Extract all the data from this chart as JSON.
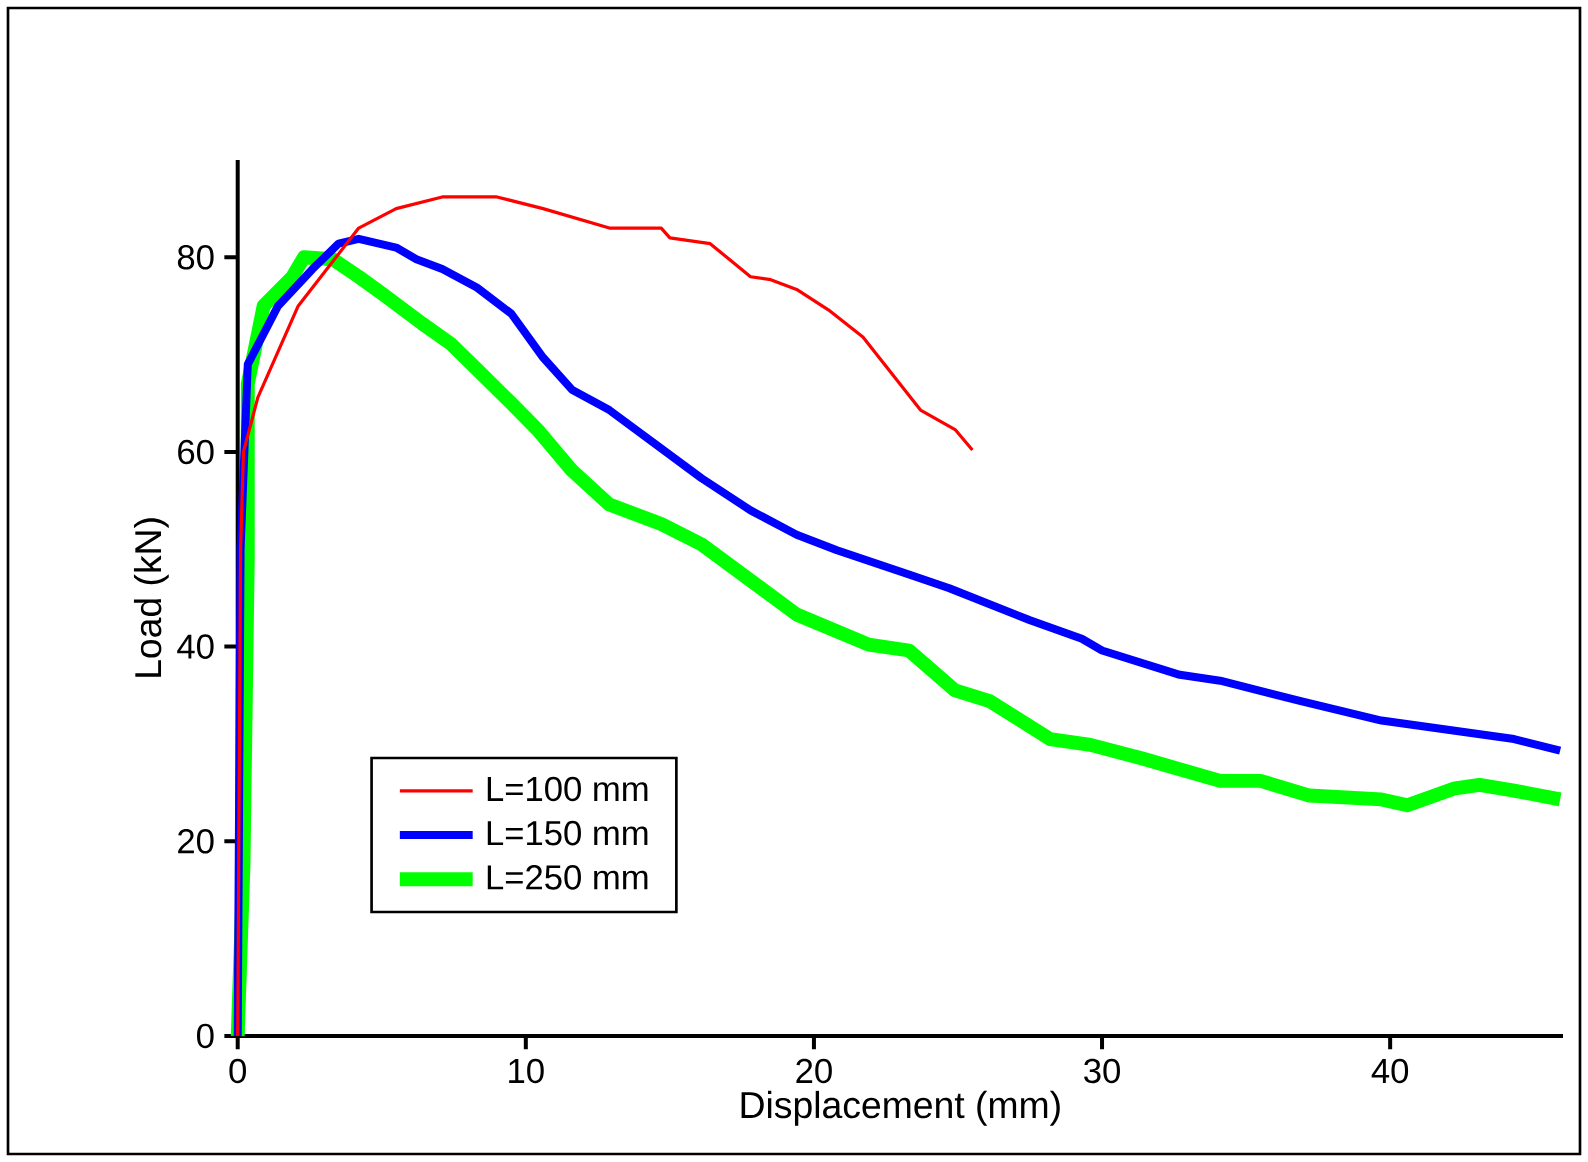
{
  "chart_data": {
    "type": "line",
    "xlabel": "Displacement (mm)",
    "ylabel": "Load (kN)",
    "xlim": [
      0,
      46
    ],
    "ylim": [
      0,
      90
    ],
    "xticks": [
      0,
      10,
      20,
      30,
      40
    ],
    "yticks": [
      0,
      20,
      40,
      60,
      80
    ],
    "grid": false,
    "legend": "bottom left",
    "marker": "none",
    "line_style": "solid",
    "series": [
      {
        "name": "L=100 mm",
        "color": "#ff0000",
        "x": [
          0,
          0.1,
          0.2,
          0.7,
          2.1,
          4.2,
          5.5,
          7.1,
          9,
          10.6,
          12.9,
          14.7,
          15,
          16.4,
          17.8,
          18.5,
          19.4,
          20.5,
          21.7,
          23.7,
          24.9,
          25.5
        ],
        "values": [
          0,
          50,
          60,
          65.6,
          75,
          83,
          85,
          86.2,
          86.2,
          85,
          83,
          83,
          82,
          81.4,
          78,
          77.7,
          76.7,
          74.6,
          71.8,
          64.3,
          62.3,
          60.2
        ]
      },
      {
        "name": "L=150 mm",
        "color": "#0000ff",
        "x": [
          0,
          0.1,
          0.35,
          1.4,
          2.6,
          3.5,
          4.2,
          5.5,
          6.2,
          7.1,
          8.3,
          9.5,
          10.6,
          11.6,
          12.9,
          14.5,
          16.1,
          17.8,
          19.4,
          20.8,
          23.3,
          24.7,
          27.5,
          29.3,
          30,
          32.7,
          34.1,
          36.9,
          39.7,
          44.3,
          45.9
        ],
        "values": [
          0,
          50,
          69,
          75,
          78.8,
          81.4,
          81.9,
          81,
          79.8,
          78.8,
          76.9,
          74.2,
          69.7,
          66.4,
          64.3,
          60.8,
          57.3,
          54,
          51.5,
          49.9,
          47.4,
          46,
          42.7,
          40.8,
          39.6,
          37.1,
          36.5,
          34.4,
          32.4,
          30.5,
          29.3
        ]
      },
      {
        "name": "L=250 mm",
        "color": "#00ff00",
        "x": [
          0,
          0.2,
          0.35,
          0.35,
          0.9,
          1.9,
          2.3,
          3.3,
          4.2,
          5,
          6.4,
          7.4,
          8.3,
          9.5,
          10.4,
          11.6,
          12.9,
          14.7,
          16.1,
          19.4,
          21.9,
          23.3,
          24.9,
          26.1,
          28.2,
          29.6,
          31.4,
          34.1,
          35.5,
          37.2,
          39.7,
          40.6,
          42.2,
          43.1,
          44.3,
          45.9
        ],
        "values": [
          0,
          17.5,
          49,
          67,
          75,
          78,
          80,
          79.8,
          78,
          76.3,
          73.2,
          71.1,
          68.5,
          65,
          62.3,
          58.1,
          54.6,
          52.6,
          50.5,
          43.3,
          40.2,
          39.6,
          35.5,
          34.4,
          30.5,
          29.9,
          28.5,
          26.2,
          26.2,
          24.7,
          24.3,
          23.7,
          25.4,
          25.8,
          25.2,
          24.3
        ]
      }
    ]
  }
}
